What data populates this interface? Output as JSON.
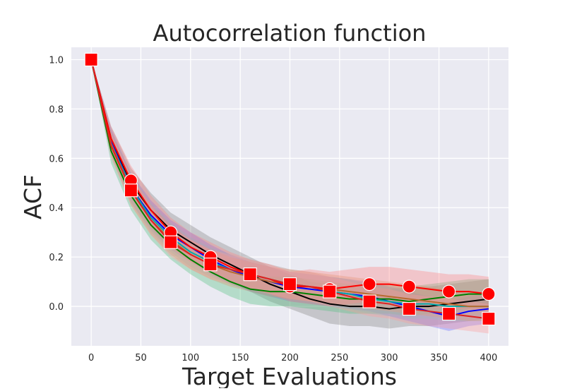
{
  "chart_data": {
    "type": "line",
    "title": "Autocorrelation function",
    "xlabel": "Target Evaluations",
    "ylabel": "ACF",
    "xlim": [
      -20,
      420
    ],
    "ylim": [
      -0.16,
      1.05
    ],
    "xticks": [
      0,
      50,
      100,
      150,
      200,
      250,
      300,
      350,
      400
    ],
    "yticks": [
      0.0,
      0.2,
      0.4,
      0.6,
      0.8,
      1.0
    ],
    "xtick_labels": [
      "0",
      "50",
      "100",
      "150",
      "200",
      "250",
      "300",
      "350",
      "400"
    ],
    "ytick_labels": [
      "0.0",
      "0.2",
      "0.4",
      "0.6",
      "0.8",
      "1.0"
    ],
    "grid": true,
    "background": "#EAEAF2",
    "x": [
      0,
      20,
      40,
      60,
      80,
      100,
      120,
      140,
      160,
      180,
      200,
      220,
      240,
      260,
      280,
      300,
      320,
      340,
      360,
      380,
      400
    ],
    "series": [
      {
        "color": "#000000",
        "values": [
          1.0,
          0.68,
          0.5,
          0.39,
          0.31,
          0.26,
          0.21,
          0.17,
          0.13,
          0.09,
          0.06,
          0.03,
          0.01,
          0.0,
          0.0,
          -0.01,
          0.0,
          0.0,
          0.01,
          0.02,
          0.03
        ],
        "band": [
          0.0,
          0.05,
          0.06,
          0.07,
          0.07,
          0.07,
          0.07,
          0.07,
          0.07,
          0.07,
          0.07,
          0.07,
          0.08,
          0.08,
          0.08,
          0.08,
          0.08,
          0.08,
          0.08,
          0.08,
          0.08
        ],
        "band_color": "#808080"
      },
      {
        "color": "#0000ff",
        "values": [
          1.0,
          0.67,
          0.48,
          0.37,
          0.29,
          0.24,
          0.19,
          0.15,
          0.12,
          0.1,
          0.08,
          0.07,
          0.06,
          0.05,
          0.04,
          0.02,
          0.0,
          -0.02,
          -0.04,
          -0.02,
          -0.01
        ],
        "band": [
          0.0,
          0.05,
          0.06,
          0.06,
          0.06,
          0.06,
          0.06,
          0.06,
          0.06,
          0.06,
          0.06,
          0.06,
          0.06,
          0.06,
          0.06,
          0.06,
          0.06,
          0.06,
          0.06,
          0.06,
          0.06
        ],
        "band_color": "#6b6bff"
      },
      {
        "color": "#008000",
        "values": [
          1.0,
          0.63,
          0.45,
          0.33,
          0.25,
          0.19,
          0.14,
          0.1,
          0.07,
          0.06,
          0.06,
          0.05,
          0.04,
          0.03,
          0.03,
          0.03,
          0.02,
          0.03,
          0.04,
          0.05,
          0.05
        ],
        "band": [
          0.0,
          0.05,
          0.06,
          0.06,
          0.06,
          0.06,
          0.06,
          0.06,
          0.06,
          0.06,
          0.06,
          0.06,
          0.06,
          0.06,
          0.06,
          0.06,
          0.06,
          0.06,
          0.06,
          0.06,
          0.06
        ],
        "band_color": "#4fbf7f"
      },
      {
        "color": "#00aaaa",
        "values": [
          1.0,
          0.66,
          0.48,
          0.36,
          0.28,
          0.22,
          0.18,
          0.15,
          0.13,
          0.11,
          0.09,
          0.08,
          0.06,
          0.05,
          0.03,
          0.02,
          0.01,
          0.01,
          0.0,
          0.0,
          0.0
        ],
        "band": [
          0.0,
          0.05,
          0.06,
          0.06,
          0.06,
          0.06,
          0.06,
          0.06,
          0.06,
          0.06,
          0.06,
          0.06,
          0.06,
          0.06,
          0.06,
          0.06,
          0.06,
          0.06,
          0.06,
          0.06,
          0.06
        ],
        "band_color": "#66cccc"
      },
      {
        "color": "#b86b30",
        "values": [
          1.0,
          0.66,
          0.47,
          0.35,
          0.27,
          0.21,
          0.17,
          0.14,
          0.12,
          0.1,
          0.09,
          0.08,
          0.07,
          0.06,
          0.05,
          0.04,
          0.03,
          0.02,
          0.01,
          0.0,
          0.0
        ],
        "band": [
          0.0,
          0.05,
          0.06,
          0.06,
          0.06,
          0.06,
          0.06,
          0.06,
          0.06,
          0.06,
          0.06,
          0.06,
          0.06,
          0.06,
          0.06,
          0.06,
          0.06,
          0.06,
          0.06,
          0.06,
          0.06
        ],
        "band_color": "#d99a6a"
      },
      {
        "color": "#ff0000",
        "values": [
          1.0,
          0.68,
          0.51,
          0.39,
          0.3,
          0.24,
          0.2,
          0.16,
          0.13,
          0.11,
          0.08,
          0.08,
          0.07,
          0.08,
          0.09,
          0.09,
          0.08,
          0.07,
          0.06,
          0.06,
          0.05
        ],
        "band": [
          0.0,
          0.05,
          0.06,
          0.06,
          0.06,
          0.06,
          0.06,
          0.06,
          0.06,
          0.06,
          0.06,
          0.07,
          0.07,
          0.07,
          0.07,
          0.07,
          0.07,
          0.07,
          0.07,
          0.07,
          0.07
        ],
        "band_color": "#ff8080",
        "marker": "circle",
        "marker_x": [
          0,
          40,
          80,
          120,
          160,
          200,
          240,
          280,
          320,
          360,
          400
        ],
        "marker_values": [
          1.0,
          0.51,
          0.3,
          0.2,
          0.13,
          0.08,
          0.07,
          0.09,
          0.08,
          0.06,
          0.05
        ]
      },
      {
        "color": "#dd2222",
        "values": [
          1.0,
          0.65,
          0.47,
          0.35,
          0.26,
          0.21,
          0.17,
          0.15,
          0.13,
          0.11,
          0.09,
          0.08,
          0.06,
          0.04,
          0.02,
          0.01,
          -0.01,
          -0.02,
          -0.03,
          -0.04,
          -0.05
        ],
        "band": [
          0.0,
          0.05,
          0.06,
          0.06,
          0.06,
          0.06,
          0.06,
          0.06,
          0.06,
          0.06,
          0.06,
          0.06,
          0.06,
          0.06,
          0.06,
          0.06,
          0.06,
          0.06,
          0.06,
          0.06,
          0.06
        ],
        "band_color": "#ff9a9a",
        "marker": "square",
        "marker_x": [
          0,
          40,
          80,
          120,
          160,
          200,
          240,
          280,
          320,
          360,
          400
        ],
        "marker_values": [
          1.0,
          0.47,
          0.26,
          0.17,
          0.13,
          0.09,
          0.06,
          0.02,
          -0.01,
          -0.03,
          -0.05
        ]
      }
    ]
  }
}
